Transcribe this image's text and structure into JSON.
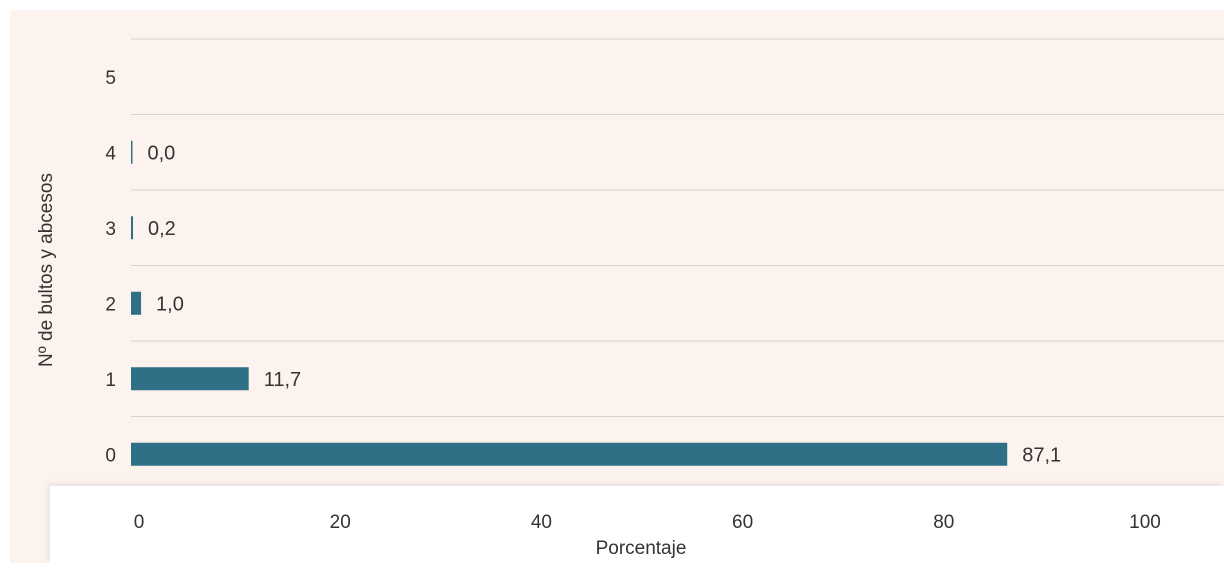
{
  "chart_data": {
    "type": "bar",
    "orientation": "horizontal",
    "categories": [
      "0",
      "1",
      "2",
      "3",
      "4",
      "5"
    ],
    "values": [
      87.1,
      11.7,
      1.0,
      0.2,
      0.0,
      null
    ],
    "value_labels": [
      "87,1",
      "11,7",
      "1,0",
      "0,2",
      "0,0",
      ""
    ],
    "xlabel": "Porcentaje",
    "ylabel": "Nº de bultos y abcesos",
    "xlim": [
      0,
      100
    ],
    "xticks": [
      "0",
      "20",
      "40",
      "60",
      "80",
      "100"
    ],
    "grid": "horizontal",
    "legend": "none",
    "colors": {
      "bar": "#2f7086",
      "plot_background": "#fcf3ee",
      "grid": "#d6d2cf",
      "text": "#333333"
    }
  }
}
